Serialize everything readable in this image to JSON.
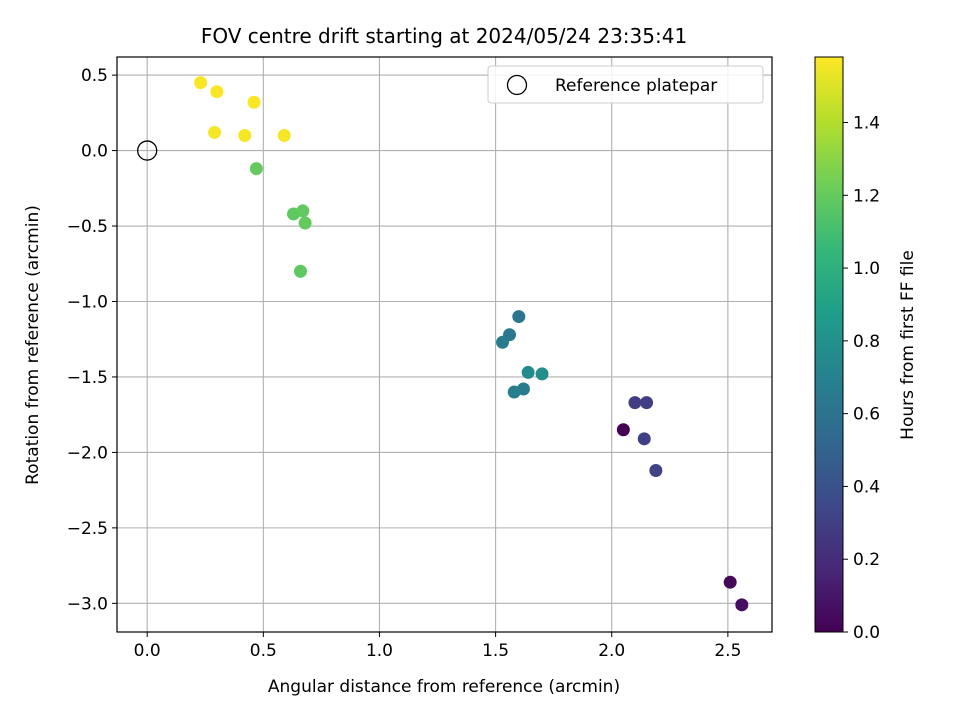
{
  "chart_data": {
    "type": "scatter",
    "title": "FOV centre drift starting at 2024/05/24 23:35:41",
    "xlabel": "Angular distance from reference (arcmin)",
    "ylabel": "Rotation from reference (arcmin)",
    "xlim": [
      -0.13,
      2.69
    ],
    "ylim": [
      -3.19,
      0.62
    ],
    "xticks": [
      0.0,
      0.5,
      1.0,
      1.5,
      2.0,
      2.5
    ],
    "xtick_labels": [
      "0.0",
      "0.5",
      "1.0",
      "1.5",
      "2.0",
      "2.5"
    ],
    "yticks": [
      0.5,
      0.0,
      -0.5,
      -1.0,
      -1.5,
      -2.0,
      -2.5,
      -3.0
    ],
    "ytick_labels": [
      "0.5",
      "0.0",
      "−0.5",
      "−1.0",
      "−1.5",
      "−2.0",
      "−2.5",
      "−3.0"
    ],
    "grid": true,
    "colorbar": {
      "label": "Hours from first FF file",
      "colormap": "viridis",
      "range": [
        0.0,
        1.58
      ],
      "ticks": [
        0.0,
        0.2,
        0.4,
        0.6,
        0.8,
        1.0,
        1.2,
        1.4
      ],
      "tick_labels": [
        "0.0",
        "0.2",
        "0.4",
        "0.6",
        "0.8",
        "1.0",
        "1.2",
        "1.4"
      ],
      "stops": [
        "#440154",
        "#482878",
        "#3e4989",
        "#31688e",
        "#26828e",
        "#1f9e89",
        "#35b779",
        "#6ece58",
        "#b5de2b",
        "#fde725"
      ]
    },
    "reference": {
      "x": 0.0,
      "y": 0.0,
      "label": "Reference platepar"
    },
    "legend": {
      "position": "top-right",
      "entries": [
        "Reference platepar"
      ]
    },
    "points": [
      {
        "x": 2.05,
        "y": -1.85,
        "hours": 0.0
      },
      {
        "x": 2.51,
        "y": -2.86,
        "hours": 0.03
      },
      {
        "x": 2.56,
        "y": -3.01,
        "hours": 0.06
      },
      {
        "x": 2.1,
        "y": -1.67,
        "hours": 0.28
      },
      {
        "x": 2.15,
        "y": -1.67,
        "hours": 0.3
      },
      {
        "x": 2.14,
        "y": -1.91,
        "hours": 0.31
      },
      {
        "x": 2.19,
        "y": -2.12,
        "hours": 0.32
      },
      {
        "x": 1.6,
        "y": -1.1,
        "hours": 0.62
      },
      {
        "x": 1.56,
        "y": -1.22,
        "hours": 0.64
      },
      {
        "x": 1.53,
        "y": -1.27,
        "hours": 0.66
      },
      {
        "x": 1.62,
        "y": -1.58,
        "hours": 0.66
      },
      {
        "x": 1.58,
        "y": -1.6,
        "hours": 0.68
      },
      {
        "x": 1.64,
        "y": -1.47,
        "hours": 0.76
      },
      {
        "x": 1.7,
        "y": -1.48,
        "hours": 0.78
      },
      {
        "x": 0.47,
        "y": -0.12,
        "hours": 1.2
      },
      {
        "x": 0.63,
        "y": -0.42,
        "hours": 1.18
      },
      {
        "x": 0.67,
        "y": -0.4,
        "hours": 1.19
      },
      {
        "x": 0.68,
        "y": -0.48,
        "hours": 1.2
      },
      {
        "x": 0.66,
        "y": -0.8,
        "hours": 1.18
      },
      {
        "x": 0.23,
        "y": 0.45,
        "hours": 1.57
      },
      {
        "x": 0.3,
        "y": 0.39,
        "hours": 1.57
      },
      {
        "x": 0.46,
        "y": 0.32,
        "hours": 1.57
      },
      {
        "x": 0.29,
        "y": 0.12,
        "hours": 1.56
      },
      {
        "x": 0.42,
        "y": 0.1,
        "hours": 1.56
      },
      {
        "x": 0.59,
        "y": 0.1,
        "hours": 1.56
      }
    ]
  }
}
